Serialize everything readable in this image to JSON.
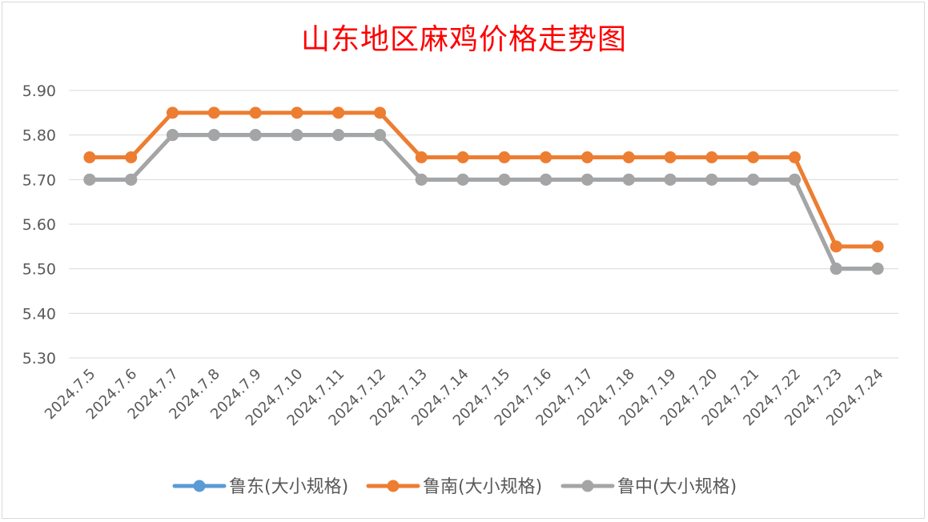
{
  "chart_data": {
    "type": "line",
    "title": "山东地区麻鸡价格走势图",
    "xlabel": "",
    "ylabel": "",
    "categories": [
      "2024.7.5",
      "2024.7.6",
      "2024.7.7",
      "2024.7.8",
      "2024.7.9",
      "2024.7.10",
      "2024.7.11",
      "2024.7.12",
      "2024.7.13",
      "2024.7.14",
      "2024.7.15",
      "2024.7.16",
      "2024.7.17",
      "2024.7.18",
      "2024.7.19",
      "2024.7.20",
      "2024.7.21",
      "2024.7.22",
      "2024.7.23",
      "2024.7.24"
    ],
    "ylim": [
      5.3,
      5.9
    ],
    "yticks": [
      "5.90",
      "5.80",
      "5.70",
      "5.60",
      "5.50",
      "5.40",
      "5.30"
    ],
    "grid": true,
    "legend_position": "bottom",
    "series": [
      {
        "name": "鲁东(大小规格)",
        "color": "#5b9bd5",
        "values": [
          5.7,
          5.7,
          5.8,
          5.8,
          5.8,
          5.8,
          5.8,
          5.8,
          5.7,
          5.7,
          5.7,
          5.7,
          5.7,
          5.7,
          5.7,
          5.7,
          5.7,
          5.7,
          5.5,
          5.5
        ]
      },
      {
        "name": "鲁南(大小规格)",
        "color": "#ed7d31",
        "values": [
          5.75,
          5.75,
          5.85,
          5.85,
          5.85,
          5.85,
          5.85,
          5.85,
          5.75,
          5.75,
          5.75,
          5.75,
          5.75,
          5.75,
          5.75,
          5.75,
          5.75,
          5.75,
          5.55,
          5.55
        ]
      },
      {
        "name": "鲁中(大小规格)",
        "color": "#a5a5a5",
        "values": [
          5.7,
          5.7,
          5.8,
          5.8,
          5.8,
          5.8,
          5.8,
          5.8,
          5.7,
          5.7,
          5.7,
          5.7,
          5.7,
          5.7,
          5.7,
          5.7,
          5.7,
          5.7,
          5.5,
          5.5
        ]
      }
    ]
  }
}
